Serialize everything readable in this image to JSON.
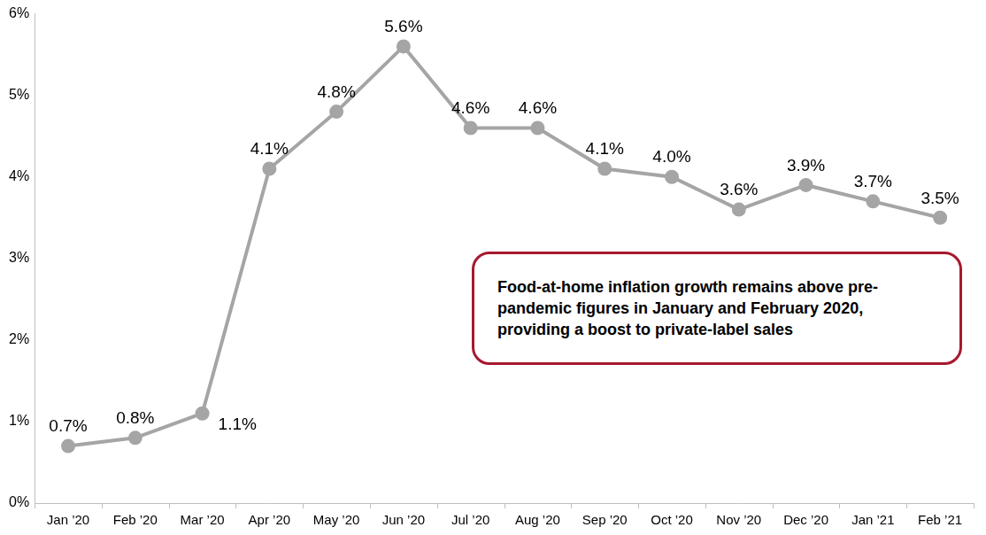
{
  "chart_data": {
    "type": "line",
    "categories": [
      "Jan ’20",
      "Feb ’20",
      "Mar ’20",
      "Apr ’20",
      "May ’20",
      "Jun ’20",
      "Jul ’20",
      "Aug ’20",
      "Sep ’20",
      "Oct ’20",
      "Nov ’20",
      "Dec ’20",
      "Jan ’21",
      "Feb ’21"
    ],
    "values": [
      0.7,
      0.8,
      1.1,
      4.1,
      4.8,
      5.6,
      4.6,
      4.6,
      4.1,
      4.0,
      3.6,
      3.9,
      3.7,
      3.5
    ],
    "value_labels": [
      "0.7%",
      "0.8%",
      "1.1%",
      "4.1%",
      "4.8%",
      "5.6%",
      "4.6%",
      "4.6%",
      "4.1%",
      "4.0%",
      "3.6%",
      "3.9%",
      "3.7%",
      "3.5%"
    ],
    "color": "#A5A5A5",
    "marker": "circle",
    "ylim": [
      0,
      6
    ],
    "yticks": [
      {
        "value": 0,
        "label": "0%"
      },
      {
        "value": 1,
        "label": "1%"
      },
      {
        "value": 2,
        "label": "2%"
      },
      {
        "value": 3,
        "label": "3%"
      },
      {
        "value": 4,
        "label": "4%"
      },
      {
        "value": 5,
        "label": "5%"
      },
      {
        "value": 6,
        "label": "6%"
      }
    ],
    "grid": false,
    "data_labels": true,
    "annotations": [
      "Food-at-home inflation growth remains above pre-pandemic figures in January and February 2020, providing a boost to private-label sales"
    ]
  }
}
